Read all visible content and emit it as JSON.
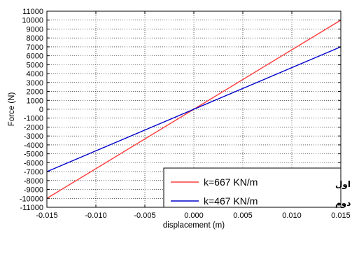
{
  "chart_data": {
    "type": "line",
    "xlabel": "displacement (m)",
    "ylabel": "Force (N)",
    "xlim": [
      -0.015,
      0.015
    ],
    "ylim": [
      -11000,
      11000
    ],
    "x_ticks": [
      -0.015,
      -0.01,
      -0.005,
      0.0,
      0.005,
      0.01,
      0.015
    ],
    "x_tick_labels": [
      "-0.015",
      "-0.010",
      "-0.005",
      "0.000",
      "0.005",
      "0.010",
      "0.015"
    ],
    "y_ticks": [
      11000,
      10000,
      9000,
      8000,
      7000,
      6000,
      5000,
      4000,
      3000,
      2000,
      1000,
      0,
      -1000,
      -2000,
      -3000,
      -4000,
      -5000,
      -6000,
      -7000,
      -8000,
      -9000,
      -10000,
      -11000
    ],
    "y_tick_labels": [
      "11000",
      "10000",
      "9000",
      "8000",
      "7000",
      "6000",
      "5000",
      "4000",
      "3000",
      "2000",
      "1000",
      "0",
      "-1000",
      "-2000",
      "-3000",
      "-4000",
      "-5000",
      "-6000",
      "-7000",
      "-8000",
      "-9000",
      "-10000",
      "-11000"
    ],
    "grid": true,
    "legend_position": "bottom-right",
    "series": [
      {
        "name": "k=667 KN/m",
        "note": "رفتـــار اول",
        "color": "#ff3b3b",
        "x": [
          -0.015,
          0.015
        ],
        "y": [
          -10000,
          10000
        ]
      },
      {
        "name": "k=467 KN/m",
        "note": "رفتـــار دوم",
        "color": "#0000cc",
        "x": [
          -0.015,
          0.015
        ],
        "y": [
          -7000,
          7000
        ]
      }
    ]
  }
}
